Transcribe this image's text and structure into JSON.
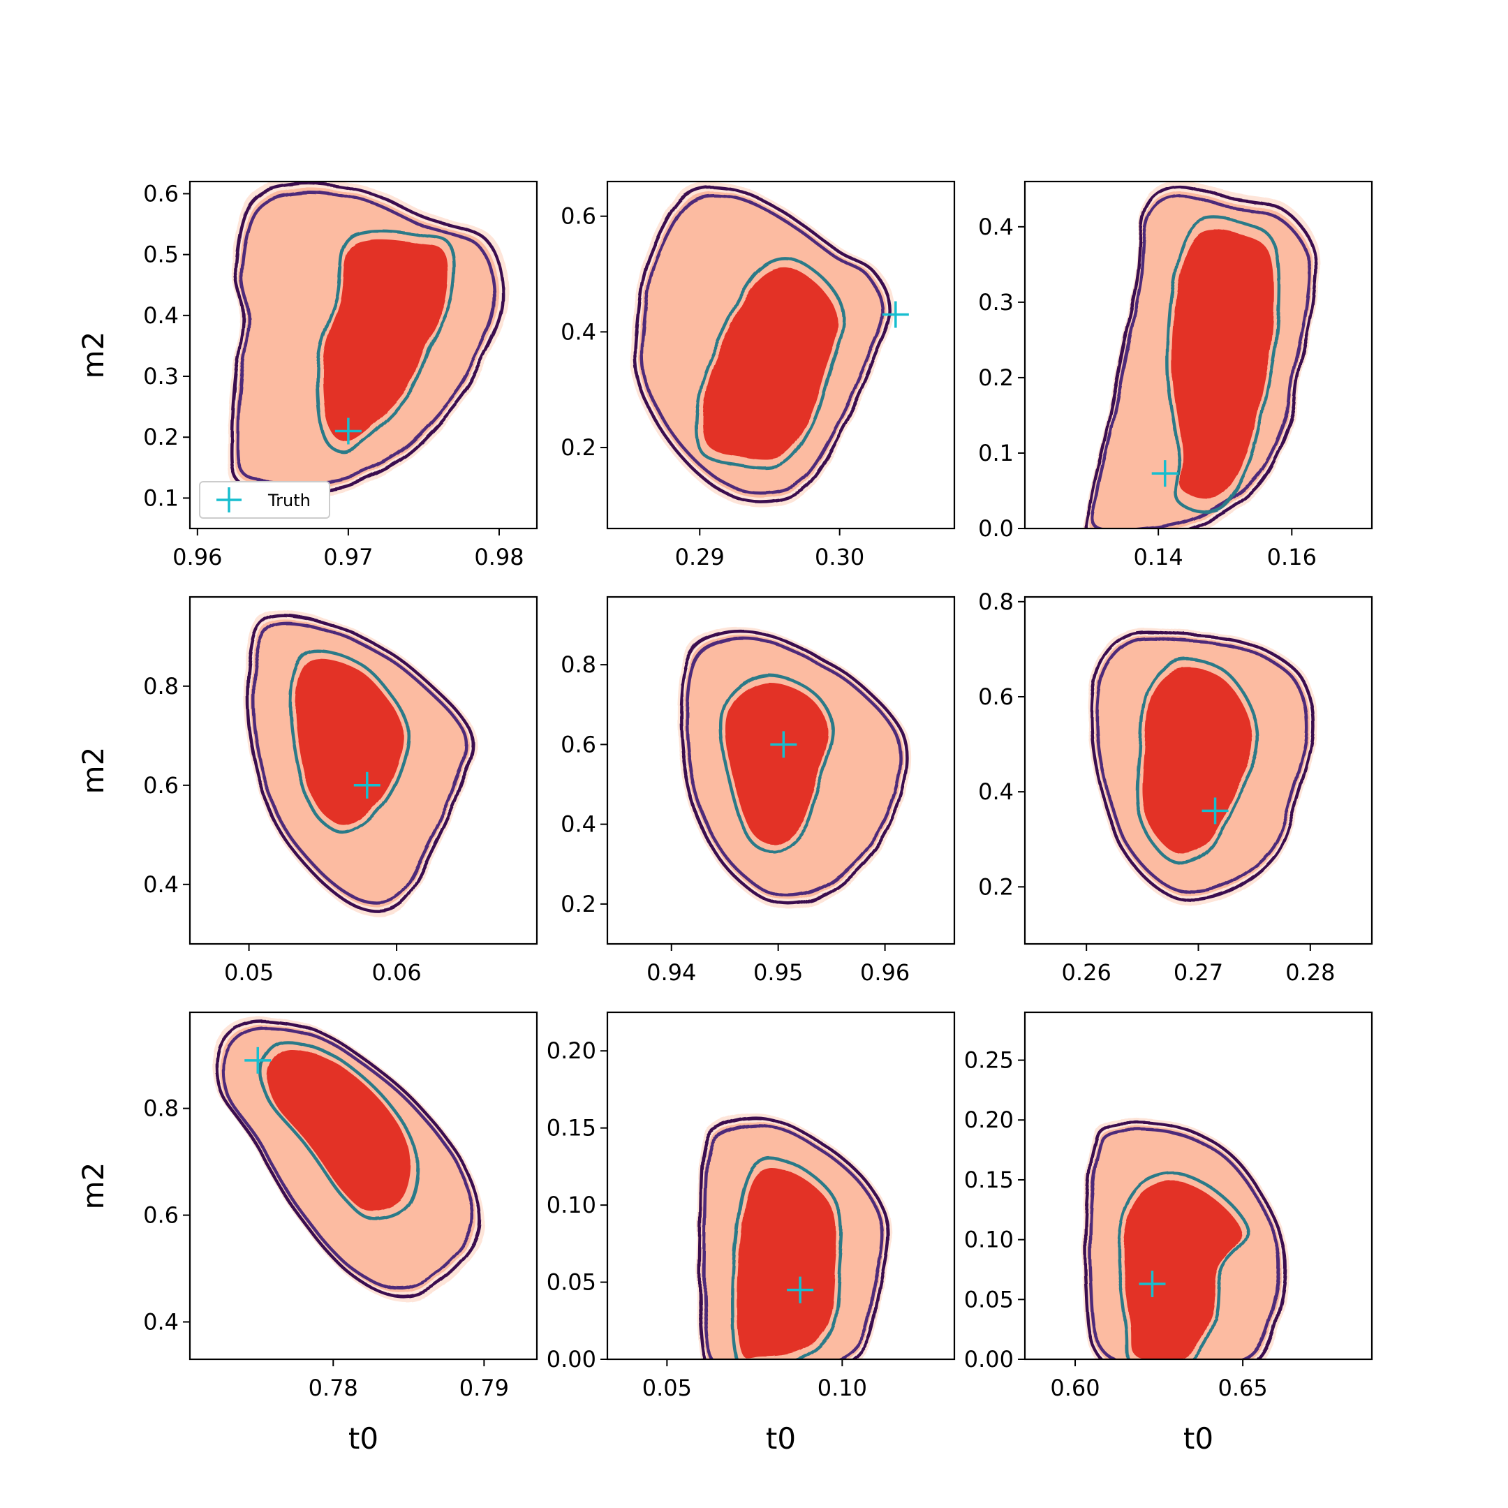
{
  "figure": {
    "xlabel": "t0",
    "ylabel": "m2",
    "legend_label": "Truth",
    "colors": {
      "density_outer": "#fee5d9",
      "density_mid": "#fcbba1",
      "density_inner": "#e33028",
      "contour_outer": "#3b0f4f",
      "contour_mid": "#4e2a7a",
      "contour_inner": "#2c7a88",
      "truth_marker": "#17becf"
    }
  },
  "chart_data": [
    {
      "type": "contour",
      "xlim": [
        0.9595,
        0.9825
      ],
      "ylim": [
        0.05,
        0.62
      ],
      "xticks": [
        "0.96",
        "0.97",
        "0.98"
      ],
      "yticks": [
        "0.1",
        "0.2",
        "0.3",
        "0.4",
        "0.5",
        "0.6"
      ],
      "truth": {
        "x": 0.97,
        "y": 0.21
      },
      "legend": true
    },
    {
      "type": "contour",
      "xlim": [
        0.2834,
        0.3082
      ],
      "ylim": [
        0.06,
        0.66
      ],
      "xticks": [
        "0.29",
        "0.30"
      ],
      "yticks": [
        "0.2",
        "0.4",
        "0.6"
      ],
      "truth": {
        "x": 0.304,
        "y": 0.43
      }
    },
    {
      "type": "contour",
      "xlim": [
        0.12,
        0.172
      ],
      "ylim": [
        0.0,
        0.46
      ],
      "xticks": [
        "0.14",
        "0.16"
      ],
      "yticks": [
        "0.0",
        "0.1",
        "0.2",
        "0.3",
        "0.4"
      ],
      "truth": {
        "x": 0.141,
        "y": 0.073
      }
    },
    {
      "type": "contour",
      "xlim": [
        0.046,
        0.0695
      ],
      "ylim": [
        0.28,
        0.98
      ],
      "xticks": [
        "0.05",
        "0.06"
      ],
      "yticks": [
        "0.4",
        "0.6",
        "0.8"
      ],
      "truth": {
        "x": 0.058,
        "y": 0.6
      }
    },
    {
      "type": "contour",
      "xlim": [
        0.934,
        0.9665
      ],
      "ylim": [
        0.1,
        0.97
      ],
      "xticks": [
        "0.94",
        "0.95",
        "0.96"
      ],
      "yticks": [
        "0.2",
        "0.4",
        "0.6",
        "0.8"
      ],
      "truth": {
        "x": 0.9505,
        "y": 0.6
      }
    },
    {
      "type": "contour",
      "xlim": [
        0.2545,
        0.2855
      ],
      "ylim": [
        0.08,
        0.81
      ],
      "xticks": [
        "0.26",
        "0.27",
        "0.28"
      ],
      "yticks": [
        "0.2",
        "0.4",
        "0.6",
        "0.8"
      ],
      "truth": {
        "x": 0.2715,
        "y": 0.36
      }
    },
    {
      "type": "contour",
      "xlim": [
        0.7705,
        0.7935
      ],
      "ylim": [
        0.33,
        0.98
      ],
      "xticks": [
        "0.78",
        "0.79"
      ],
      "yticks": [
        "0.4",
        "0.6",
        "0.8"
      ],
      "truth": {
        "x": 0.775,
        "y": 0.89
      }
    },
    {
      "type": "contour",
      "xlim": [
        0.033,
        0.132
      ],
      "ylim": [
        0.0,
        0.225
      ],
      "xticks": [
        "0.05",
        "0.10"
      ],
      "yticks": [
        "0.00",
        "0.05",
        "0.10",
        "0.15",
        "0.20"
      ],
      "truth": {
        "x": 0.088,
        "y": 0.045
      }
    },
    {
      "type": "contour",
      "xlim": [
        0.585,
        0.6885
      ],
      "ylim": [
        0.0,
        0.29
      ],
      "xticks": [
        "0.60",
        "0.65"
      ],
      "yticks": [
        "0.00",
        "0.05",
        "0.10",
        "0.15",
        "0.20",
        "0.25"
      ],
      "truth": {
        "x": 0.623,
        "y": 0.063
      }
    }
  ]
}
